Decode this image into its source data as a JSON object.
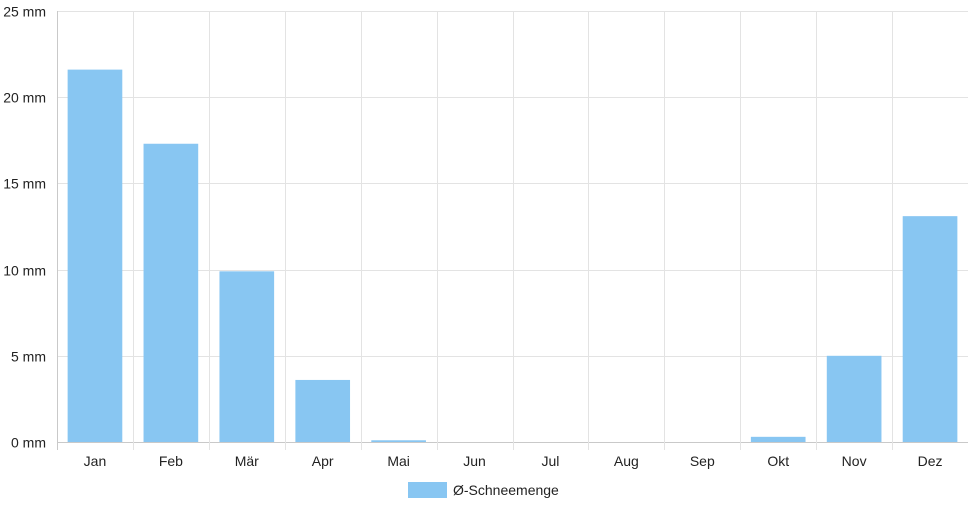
{
  "chart_data": {
    "type": "bar",
    "categories": [
      "Jan",
      "Feb",
      "Mär",
      "Apr",
      "Mai",
      "Jun",
      "Jul",
      "Aug",
      "Sep",
      "Okt",
      "Nov",
      "Dez"
    ],
    "series": [
      {
        "name": "Ø-Schneemenge",
        "values": [
          21.6,
          17.3,
          9.9,
          3.6,
          0.1,
          0,
          0,
          0,
          0,
          0.3,
          5.0,
          13.1
        ],
        "color": "#88c6f2"
      }
    ],
    "ylim": [
      0,
      25
    ],
    "yticks": [
      0,
      5,
      10,
      15,
      20,
      25
    ],
    "y_unit": "mm",
    "grid": true,
    "legend_position": "bottom"
  }
}
